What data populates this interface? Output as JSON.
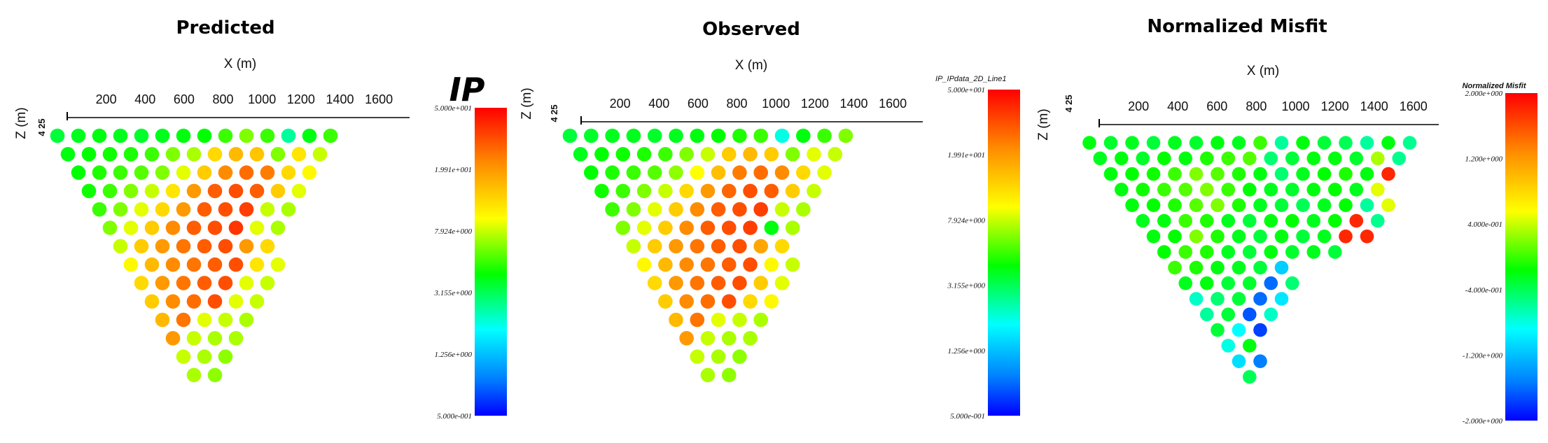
{
  "chart_data": [
    {
      "type": "scatter",
      "title": "Predicted",
      "xlabel": "X (m)",
      "ylabel": "Z (m)",
      "xticks": [
        "200",
        "400",
        "600",
        "800",
        "1000",
        "1200",
        "1400",
        "1600"
      ],
      "xlim": [
        0,
        1700
      ],
      "z_tick_label": "4 25",
      "colorbar": {
        "title": "IP",
        "ticks": [
          "5.000e+001",
          "1.991e+001",
          "7.924e+000",
          "3.155e+000",
          "1.256e+000",
          "5.000e-001"
        ],
        "range": [
          0.5,
          50
        ],
        "scale": "log"
      },
      "rows": [
        [
          0.42,
          0.44,
          0.45,
          0.44,
          0.43,
          0.44,
          0.45,
          0.46,
          0.5,
          0.55,
          0.5,
          0.35,
          0.45,
          0.5
        ],
        [
          0.45,
          0.46,
          0.47,
          0.48,
          0.5,
          0.55,
          0.58,
          0.7,
          0.75,
          0.73,
          0.55,
          0.68,
          0.6
        ],
        [
          0.46,
          0.48,
          0.5,
          0.52,
          0.55,
          0.62,
          0.72,
          0.82,
          0.86,
          0.84,
          0.7,
          0.65
        ],
        [
          0.47,
          0.5,
          0.55,
          0.6,
          0.68,
          0.8,
          0.88,
          0.9,
          0.88,
          0.72,
          0.62
        ],
        [
          0.5,
          0.55,
          0.62,
          0.7,
          0.8,
          0.88,
          0.9,
          0.92,
          0.6,
          0.58
        ],
        [
          0.55,
          0.62,
          0.72,
          0.82,
          0.88,
          0.9,
          0.93,
          0.62,
          0.58
        ],
        [
          0.6,
          0.72,
          0.8,
          0.85,
          0.88,
          0.9,
          0.8,
          0.7
        ],
        [
          0.65,
          0.75,
          0.82,
          0.85,
          0.88,
          0.9,
          0.68,
          0.62
        ],
        [
          0.7,
          0.8,
          0.85,
          0.88,
          0.9,
          0.62,
          0.6
        ],
        [
          0.72,
          0.82,
          0.86,
          0.9,
          0.62,
          0.6
        ],
        [
          0.75,
          0.85,
          0.62,
          0.6,
          0.58
        ],
        [
          0.8,
          0.6,
          0.58,
          0.58
        ],
        [
          0.6,
          0.58,
          0.56
        ],
        [
          0.58,
          0.56
        ]
      ]
    },
    {
      "type": "scatter",
      "title": "Observed",
      "xlabel": "X (m)",
      "ylabel": "Z (m)",
      "xticks": [
        "200",
        "400",
        "600",
        "800",
        "1000",
        "1200",
        "1400",
        "1600"
      ],
      "xlim": [
        0,
        1700
      ],
      "z_tick_label": "4 25",
      "colorbar": {
        "title": "IP_IPdata_2D_Line1",
        "ticks": [
          "5.000e+001",
          "1.991e+001",
          "7.924e+000",
          "3.155e+000",
          "1.256e+000",
          "5.000e-001"
        ],
        "range": [
          0.5,
          50
        ],
        "scale": "log"
      },
      "rows": [
        [
          0.42,
          0.43,
          0.44,
          0.44,
          0.43,
          0.44,
          0.45,
          0.46,
          0.48,
          0.5,
          0.3,
          0.45,
          0.5,
          0.55
        ],
        [
          0.44,
          0.46,
          0.47,
          0.48,
          0.5,
          0.55,
          0.6,
          0.72,
          0.75,
          0.72,
          0.55,
          0.62,
          0.6
        ],
        [
          0.46,
          0.48,
          0.5,
          0.52,
          0.56,
          0.64,
          0.74,
          0.84,
          0.86,
          0.82,
          0.7,
          0.62
        ],
        [
          0.47,
          0.5,
          0.55,
          0.6,
          0.7,
          0.8,
          0.87,
          0.9,
          0.88,
          0.72,
          0.6
        ],
        [
          0.5,
          0.55,
          0.62,
          0.72,
          0.82,
          0.88,
          0.9,
          0.92,
          0.6,
          0.58
        ],
        [
          0.55,
          0.62,
          0.72,
          0.82,
          0.88,
          0.9,
          0.92,
          0.45,
          0.58
        ],
        [
          0.6,
          0.72,
          0.8,
          0.85,
          0.88,
          0.9,
          0.78,
          0.7
        ],
        [
          0.65,
          0.75,
          0.82,
          0.85,
          0.88,
          0.9,
          0.65,
          0.6
        ],
        [
          0.7,
          0.8,
          0.85,
          0.88,
          0.9,
          0.72,
          0.62
        ],
        [
          0.72,
          0.82,
          0.86,
          0.9,
          0.7,
          0.65
        ],
        [
          0.75,
          0.85,
          0.62,
          0.6,
          0.58
        ],
        [
          0.8,
          0.6,
          0.58,
          0.58
        ],
        [
          0.6,
          0.58,
          0.56
        ],
        [
          0.58,
          0.56
        ]
      ]
    },
    {
      "type": "scatter",
      "title": "Normalized Misfit",
      "xlabel": "X (m)",
      "ylabel": "Z (m)",
      "xticks": [
        "200",
        "400",
        "600",
        "800",
        "1000",
        "1200",
        "1400",
        "1600"
      ],
      "xlim": [
        0,
        1700
      ],
      "z_tick_label": "4 25",
      "colorbar": {
        "title": "Normalized Misfit",
        "ticks": [
          "2.000e+000",
          "1.200e+000",
          "4.000e-001",
          "-4.000e-001",
          "-1.200e+000",
          "-2.000e+000"
        ],
        "range": [
          -2,
          2
        ],
        "scale": "linear"
      },
      "rows": [
        [
          0.45,
          0.43,
          0.44,
          0.42,
          0.44,
          0.43,
          0.45,
          0.44,
          0.5,
          0.35,
          0.45,
          0.42,
          0.4,
          0.35,
          0.45,
          0.36
        ],
        [
          0.44,
          0.45,
          0.43,
          0.46,
          0.45,
          0.48,
          0.5,
          0.52,
          0.38,
          0.42,
          0.45,
          0.45,
          0.43,
          0.58,
          0.36
        ],
        [
          0.45,
          0.46,
          0.47,
          0.5,
          0.55,
          0.52,
          0.48,
          0.45,
          0.38,
          0.44,
          0.46,
          0.48,
          0.45,
          0.95
        ],
        [
          0.45,
          0.47,
          0.5,
          0.52,
          0.55,
          0.5,
          0.46,
          0.44,
          0.43,
          0.45,
          0.46,
          0.44,
          0.62
        ],
        [
          0.45,
          0.46,
          0.48,
          0.52,
          0.55,
          0.48,
          0.44,
          0.42,
          0.4,
          0.44,
          0.46,
          0.35,
          0.62
        ],
        [
          0.44,
          0.45,
          0.5,
          0.48,
          0.44,
          0.42,
          0.45,
          0.46,
          0.44,
          0.46,
          0.95,
          0.36
        ],
        [
          0.45,
          0.46,
          0.55,
          0.48,
          0.44,
          0.42,
          0.45,
          0.42,
          0.44,
          0.95,
          0.95
        ],
        [
          0.46,
          0.5,
          0.48,
          0.44,
          0.42,
          0.45,
          0.43,
          0.44,
          0.42
        ],
        [
          0.5,
          0.48,
          0.45,
          0.44,
          0.42,
          0.22
        ],
        [
          0.44,
          0.45,
          0.42,
          0.43,
          0.1,
          0.38
        ],
        [
          0.32,
          0.38,
          0.42,
          0.1,
          0.25
        ],
        [
          0.35,
          0.42,
          0.08,
          0.32
        ],
        [
          0.42,
          0.28,
          0.06
        ],
        [
          0.3,
          0.45
        ],
        [
          0.24,
          0.12
        ],
        [
          0.4
        ]
      ]
    }
  ]
}
